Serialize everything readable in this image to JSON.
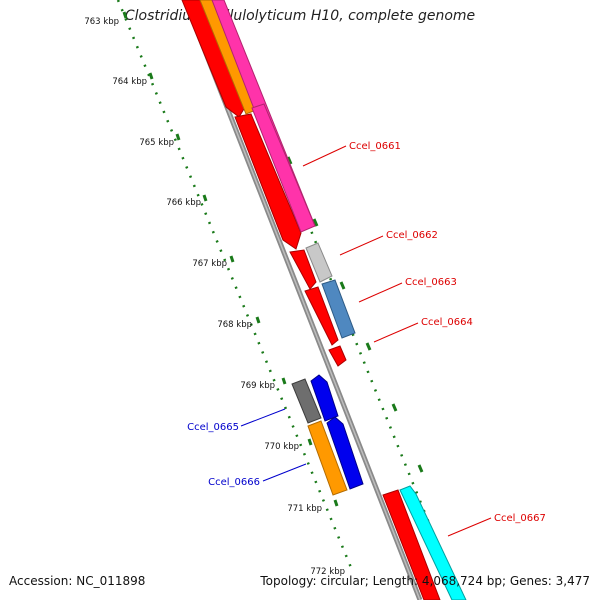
{
  "title": "Clostridium cellulolyticum H10, complete genome",
  "footer": {
    "accession": "Accession: NC_011898",
    "topology": "Topology: circular; Length: 4,068,724 bp; Genes: 3,477"
  },
  "scale_labels": [
    "763 kbp",
    "764 kbp",
    "765 kbp",
    "766 kbp",
    "767 kbp",
    "768 kbp",
    "769 kbp",
    "770 kbp",
    "771 kbp",
    "772 kbp"
  ],
  "gene_labels": [
    {
      "text": "Ccel_0661",
      "color": "#dd0000"
    },
    {
      "text": "Ccel_0662",
      "color": "#dd0000"
    },
    {
      "text": "Ccel_0663",
      "color": "#dd0000"
    },
    {
      "text": "Ccel_0664",
      "color": "#dd0000"
    },
    {
      "text": "Ccel_0665",
      "color": "#0000cc"
    },
    {
      "text": "Ccel_0666",
      "color": "#0000cc"
    },
    {
      "text": "Ccel_0667",
      "color": "#dd0000"
    }
  ],
  "colors": {
    "backbone": "#8c8c8c",
    "tick": "#1a7a1a",
    "forward_cds": "#ff0000",
    "reverse_cds": "#0000ee",
    "gc_skew_orange": "#ff9900",
    "magenta": "#ff33aa",
    "gray": "#c0c0c0",
    "steelblue": "#4f88c0",
    "darkgray": "#707070",
    "cyan": "#00ffff"
  }
}
